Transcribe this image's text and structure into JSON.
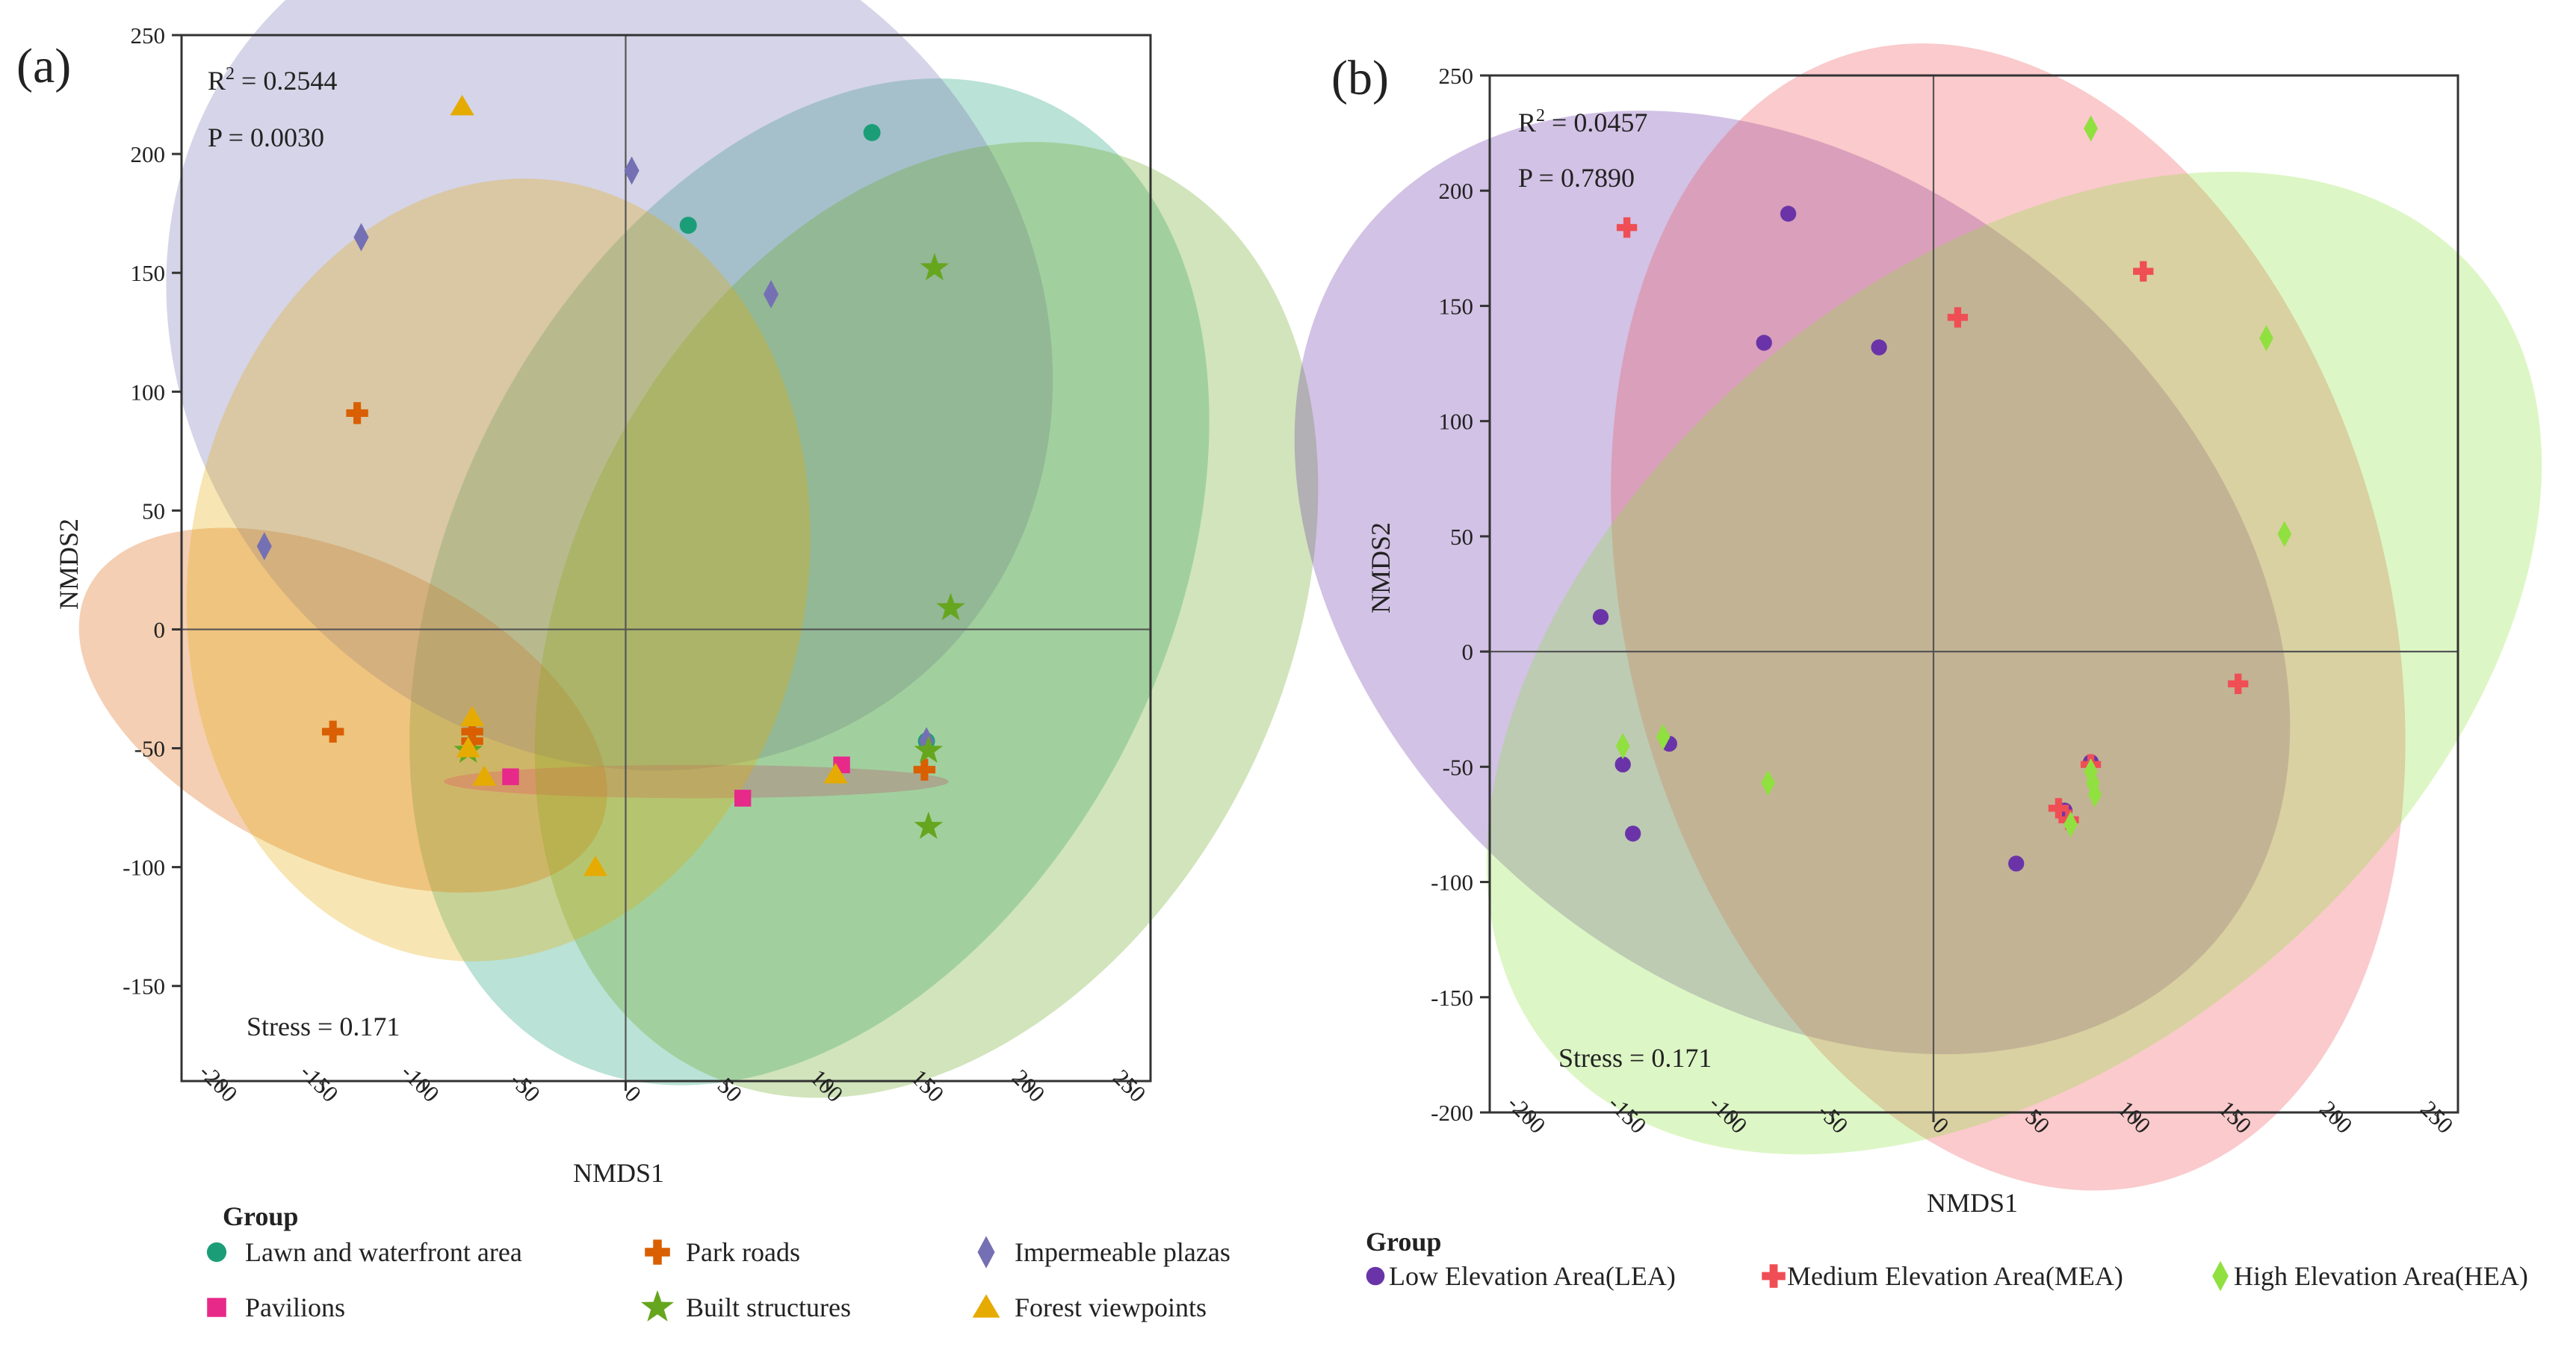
{
  "chart_data": [
    {
      "type": "scatter",
      "panel_label": "(a)",
      "xlabel": "NMDS1",
      "ylabel": "NMDS2",
      "xlim": [
        -220,
        260
      ],
      "ylim": [
        -190,
        250
      ],
      "xticks": [
        -200,
        -150,
        -100,
        -50,
        0,
        50,
        100,
        150,
        200,
        250
      ],
      "yticks": [
        -150,
        -100,
        -50,
        0,
        50,
        100,
        150,
        200,
        250
      ],
      "stats": {
        "r2_label": "R",
        "r2_sup": "2",
        "r2_value": " = 0.2544",
        "p": "P = 0.0030",
        "stress": "Stress = 0.171"
      },
      "legend": {
        "title": "Group",
        "placement": "below"
      },
      "series": [
        {
          "name": "Lawn and waterfront area",
          "marker": "circle",
          "color": "#1b9e77",
          "points": [
            [
              122,
              209
            ],
            [
              31,
              170
            ],
            [
              149,
              -47
            ]
          ],
          "ellipse": {
            "cx": 91,
            "cy": 20,
            "rx": 265,
            "ry": 150,
            "angle": 63
          }
        },
        {
          "name": "Park roads",
          "marker": "plus",
          "color": "#d95f02",
          "points": [
            [
              -133,
              91
            ],
            [
              -145,
              -43
            ],
            [
              -76,
              -43
            ],
            [
              -76,
              -47
            ],
            [
              148,
              -59
            ]
          ],
          "ellipse": {
            "cx": -140,
            "cy": -34,
            "rx": 140,
            "ry": 64,
            "angle": -25
          }
        },
        {
          "name": "Impermeable plazas",
          "marker": "diamond",
          "color": "#7570b3",
          "points": [
            [
              3,
              193
            ],
            [
              -131,
              165
            ],
            [
              72,
              141
            ],
            [
              -179,
              35
            ],
            [
              149,
              -47
            ]
          ],
          "ellipse": {
            "cx": -8,
            "cy": 125,
            "rx": 230,
            "ry": 175,
            "angle": -42
          }
        },
        {
          "name": "Pavilions",
          "marker": "square",
          "color": "#e7298a",
          "points": [
            [
              -57,
              -62
            ],
            [
              58,
              -71
            ],
            [
              107,
              -57
            ]
          ],
          "ellipse": {
            "cx": 35,
            "cy": -64,
            "rx": 125,
            "ry": 7,
            "angle": 0
          }
        },
        {
          "name": "Built structures",
          "marker": "star",
          "color": "#66a61e",
          "points": [
            [
              153,
              152
            ],
            [
              161,
              9
            ],
            [
              150,
              -51
            ],
            [
              150,
              -83
            ],
            [
              -78,
              -51
            ]
          ],
          "ellipse": {
            "cx": 149,
            "cy": 4,
            "rx": 250,
            "ry": 150,
            "angle": 63
          }
        },
        {
          "name": "Forest viewpoints",
          "marker": "triangle",
          "color": "#e6ab02",
          "points": [
            [
              -81,
              220
            ],
            [
              -76,
              -37
            ],
            [
              -70,
              -62
            ],
            [
              104,
              -61
            ],
            [
              -15,
              -100
            ],
            [
              -78,
              -50
            ]
          ],
          "ellipse": {
            "cx": -63,
            "cy": 25,
            "rx": 195,
            "ry": 130,
            "angle": 80
          }
        }
      ]
    },
    {
      "type": "scatter",
      "panel_label": "(b)",
      "xlabel": "NMDS1",
      "ylabel": "NMDS2",
      "xlim": [
        -220,
        260
      ],
      "ylim": [
        -200,
        250
      ],
      "xticks": [
        -200,
        -150,
        -100,
        -50,
        0,
        50,
        100,
        150,
        200,
        250
      ],
      "yticks": [
        -200,
        -150,
        -100,
        -50,
        0,
        50,
        100,
        150,
        200,
        250
      ],
      "stats": {
        "r2_label": "R",
        "r2_sup": "2",
        "r2_value": " = 0.0457",
        "p": "P = 0.7890",
        "stress": "Stress = 0.171"
      },
      "legend": {
        "title": "Group",
        "placement": "below"
      },
      "series": [
        {
          "name": "Low Elevation Area(LEA)",
          "marker": "circle",
          "color": "#6a34a8",
          "points": [
            [
              -72,
              190
            ],
            [
              -84,
              134
            ],
            [
              -27,
              132
            ],
            [
              -165,
              15
            ],
            [
              -154,
              -49
            ],
            [
              -131,
              -40
            ],
            [
              -149,
              -79
            ],
            [
              41,
              -92
            ],
            [
              65,
              -69
            ],
            [
              78,
              -48
            ]
          ],
          "ellipse": {
            "cx": -70,
            "cy": 30,
            "rx": 275,
            "ry": 175,
            "angle": -40
          }
        },
        {
          "name": "Medium Elevation Area(MEA)",
          "marker": "plus",
          "color": "#f04e55",
          "points": [
            [
              -152,
              184
            ],
            [
              12,
              145
            ],
            [
              104,
              165
            ],
            [
              151,
              -14
            ],
            [
              62,
              -68
            ],
            [
              67,
              -73
            ],
            [
              78,
              -49
            ]
          ],
          "ellipse": {
            "cx": 37,
            "cy": 15,
            "rx": 290,
            "ry": 165,
            "angle": -75
          }
        },
        {
          "name": "High Elevation Area(HEA)",
          "marker": "diamond",
          "color": "#90e040",
          "points": [
            [
              78,
              227
            ],
            [
              165,
              136
            ],
            [
              174,
              51
            ],
            [
              -154,
              -41
            ],
            [
              -134,
              -37
            ],
            [
              -82,
              -57
            ],
            [
              78,
              -52
            ],
            [
              79,
              -57
            ],
            [
              80,
              -62
            ],
            [
              68,
              -75
            ]
          ],
          "ellipse": {
            "cx": 40,
            "cy": -5,
            "rx": 300,
            "ry": 170,
            "angle": 40
          }
        }
      ]
    }
  ]
}
